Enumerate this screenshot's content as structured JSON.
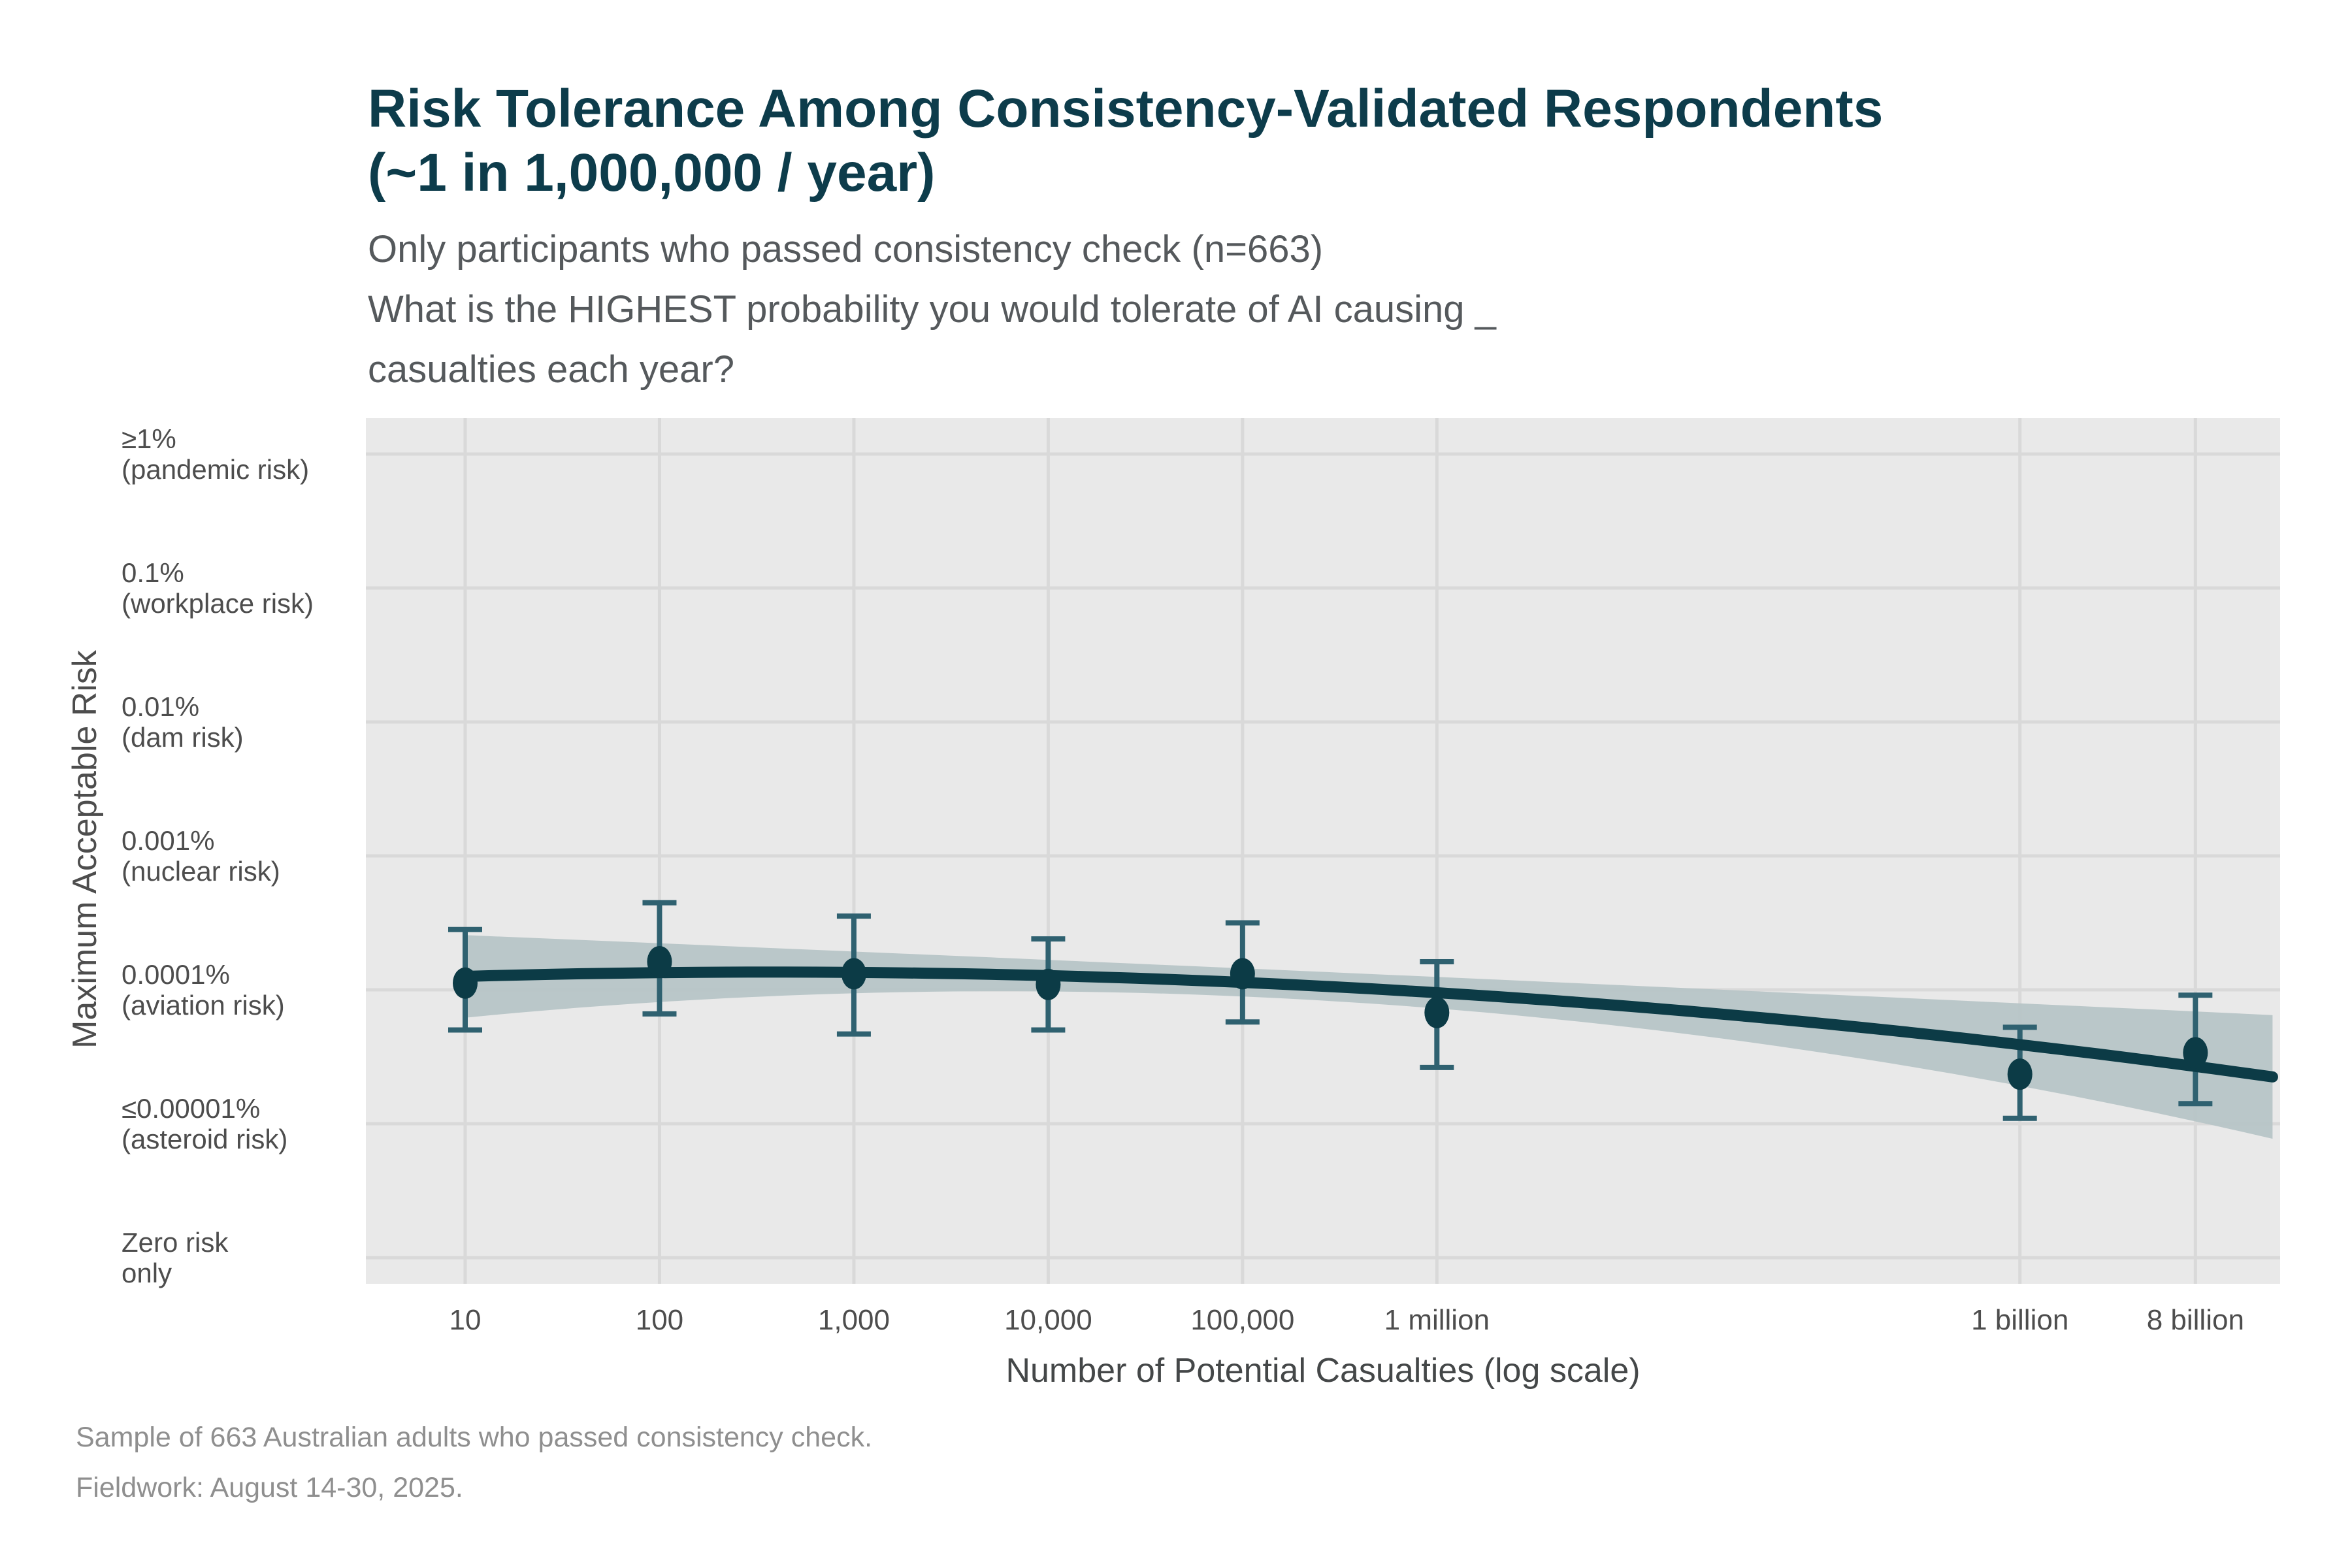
{
  "header": {
    "title": "Risk Tolerance Among Consistency-Validated Respondents\n(~1 in 1,000,000 / year)",
    "subtitle": "Only participants who passed consistency check (n=663)\nWhat is the HIGHEST probability you would tolerate of AI causing _\ncasualties each year?"
  },
  "footer": {
    "caption": "Sample of 663 Australian adults who passed consistency check.\nFieldwork: August 14-30, 2025."
  },
  "chart_data": {
    "type": "scatter",
    "title": "Risk Tolerance Among Consistency-Validated Respondents (~1 in 1,000,000 / year)",
    "subtitle": "Only participants who passed consistency check (n=663). What is the HIGHEST probability you would tolerate of AI causing _ casualties each year?",
    "xlabel": "Number of Potential Casualties (log scale)",
    "ylabel": "Maximum Acceptable Risk",
    "x_scale": "log10",
    "grid": true,
    "legend": "none",
    "y_scale_note": "ordinal category index k: 0 = Zero risk only, 1 = ≤0.00001%, 2 = 0.0001%, 3 = 0.001%, 4 = 0.01%, 5 = 0.1%, 6 = ≥1%",
    "y_categories": [
      {
        "k": 0,
        "label": "Zero risk\nonly"
      },
      {
        "k": 1,
        "label": "≤0.00001%\n(asteroid risk)"
      },
      {
        "k": 2,
        "label": "0.0001%\n(aviation risk)"
      },
      {
        "k": 3,
        "label": "0.001%\n(nuclear risk)"
      },
      {
        "k": 4,
        "label": "0.01%\n(dam risk)"
      },
      {
        "k": 5,
        "label": "0.1%\n(workplace risk)"
      },
      {
        "k": 6,
        "label": "≥1%\n(pandemic risk)"
      }
    ],
    "x_ticks": [
      {
        "label": "10",
        "value": 10,
        "log10": 1
      },
      {
        "label": "100",
        "value": 100,
        "log10": 2
      },
      {
        "label": "1,000",
        "value": 1000,
        "log10": 3
      },
      {
        "label": "10,000",
        "value": 10000,
        "log10": 4
      },
      {
        "label": "100,000",
        "value": 100000,
        "log10": 5
      },
      {
        "label": "1 million",
        "value": 1000000,
        "log10": 6
      },
      {
        "label": "1 billion",
        "value": 1000000000,
        "log10": 9
      },
      {
        "label": "8 billion",
        "value": 8000000000,
        "log10": 9.9031
      }
    ],
    "points": [
      {
        "x_label": "10",
        "x": 10,
        "log10": 1,
        "mean_k": 2.05,
        "lo_k": 1.7,
        "hi_k": 2.45
      },
      {
        "x_label": "100",
        "x": 100,
        "log10": 2,
        "mean_k": 2.21,
        "lo_k": 1.82,
        "hi_k": 2.65
      },
      {
        "x_label": "1,000",
        "x": 1000,
        "log10": 3,
        "mean_k": 2.12,
        "lo_k": 1.67,
        "hi_k": 2.55
      },
      {
        "x_label": "10,000",
        "x": 10000,
        "log10": 4,
        "mean_k": 2.04,
        "lo_k": 1.7,
        "hi_k": 2.38
      },
      {
        "x_label": "100,000",
        "x": 100000,
        "log10": 5,
        "mean_k": 2.12,
        "lo_k": 1.76,
        "hi_k": 2.5
      },
      {
        "x_label": "1 million",
        "x": 1000000,
        "log10": 6,
        "mean_k": 1.83,
        "lo_k": 1.42,
        "hi_k": 2.21
      },
      {
        "x_label": "1 billion",
        "x": 1000000000,
        "log10": 9,
        "mean_k": 1.37,
        "lo_k": 1.04,
        "hi_k": 1.72
      },
      {
        "x_label": "8 billion",
        "x": 8000000000,
        "log10": 9.9031,
        "mean_k": 1.53,
        "lo_k": 1.15,
        "hi_k": 1.96
      }
    ],
    "smooth": {
      "type": "quadratic_in_log10x_with_confidence_band",
      "line_k_of_t": {
        "a": 2.0457,
        "b": 0.06743,
        "c": -0.013108
      },
      "band_halfwidth_k_of_t": {
        "base": 0.105,
        "quad": 0.0127,
        "center_t": 5
      },
      "t_domain": [
        1,
        10.34
      ]
    },
    "colors": {
      "title": "#0d3c4b",
      "subtitle": "#55595c",
      "axis_text": "#4d4d4d",
      "caption": "#8f8f8f",
      "panel_background": "#e9e9e9",
      "gridline": "#d9d9d9",
      "point_and_line": "#0c3b46",
      "error_bar": "#2f6170",
      "ribbon": "#b6c4c6"
    }
  }
}
